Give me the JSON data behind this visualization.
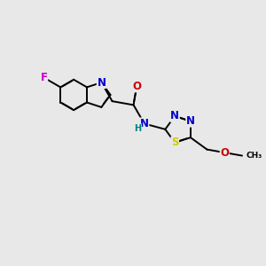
{
  "bg": "#e8e8e8",
  "bond_color": "#000000",
  "bw": 1.4,
  "dbo": 0.012,
  "colors": {
    "N": "#0000cc",
    "O": "#cc0000",
    "S": "#cccc00",
    "F": "#cc00cc",
    "H": "#008080",
    "C": "#000000"
  },
  "fs": 8.5
}
